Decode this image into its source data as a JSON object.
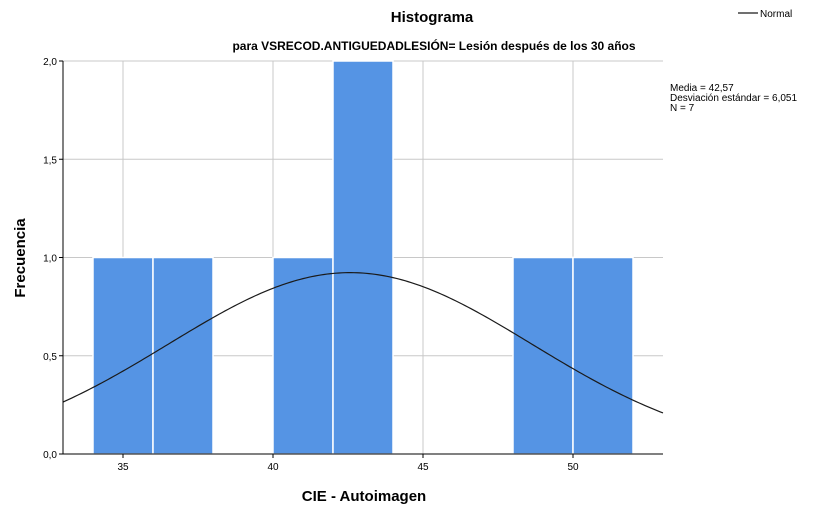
{
  "chart_data": {
    "type": "bar",
    "title": "Histograma",
    "subtitle": "para VSRECOD.ANTIGUEDADLESIÓN= Lesión después de los 30 años",
    "xlabel": "CIE - Autoimagen",
    "ylabel": "Frecuencia",
    "xlim": [
      33,
      53
    ],
    "ylim": [
      0,
      2.0
    ],
    "x_ticks": [
      35,
      40,
      45,
      50
    ],
    "x_tick_labels": [
      "35",
      "40",
      "45",
      "50"
    ],
    "y_ticks": [
      0,
      0.5,
      1.0,
      1.5,
      2.0
    ],
    "y_tick_labels": [
      "0,0",
      "0,5",
      "1,0",
      "1,5",
      "2,0"
    ],
    "grid": true,
    "bins": [
      {
        "start": 34,
        "end": 36,
        "count": 1
      },
      {
        "start": 36,
        "end": 38,
        "count": 1
      },
      {
        "start": 40,
        "end": 42,
        "count": 1
      },
      {
        "start": 42,
        "end": 44,
        "count": 2
      },
      {
        "start": 48,
        "end": 50,
        "count": 1
      },
      {
        "start": 50,
        "end": 52,
        "count": 1
      }
    ],
    "bar_color": "#5594e4",
    "normal_curve": {
      "mean": 42.57,
      "sd": 6.051,
      "n": 7,
      "bin_width": 2,
      "color": "#1a1a1a"
    },
    "legend": {
      "label": "Normal",
      "position": "top-right"
    },
    "stats": [
      "Media = 42,57",
      "Desviación estándar = 6,051",
      "N = 7"
    ]
  }
}
